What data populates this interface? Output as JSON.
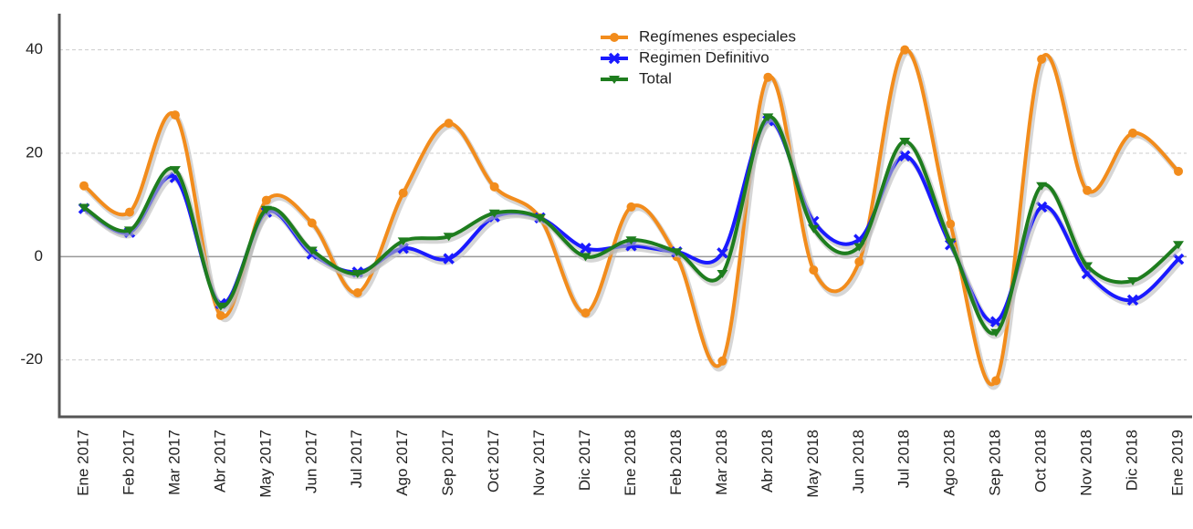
{
  "chart_data": {
    "type": "line",
    "categories": [
      "Ene 2017",
      "Feb 2017",
      "Mar 2017",
      "Abr 2017",
      "May 2017",
      "Jun 2017",
      "Jul 2017",
      "Ago 2017",
      "Sep 2017",
      "Oct 2017",
      "Nov 2017",
      "Dic 2017",
      "Ene 2018",
      "Feb 2018",
      "Mar 2018",
      "Abr 2018",
      "May 2018",
      "Jun 2018",
      "Jul 2018",
      "Ago 2018",
      "Sep 2018",
      "Oct 2018",
      "Nov 2018",
      "Dic 2018",
      "Ene 2019"
    ],
    "series": [
      {
        "name": "Regímenes especiales",
        "color": "#f28c1c",
        "marker": "circle",
        "values": [
          13.7,
          8.6,
          27.4,
          -11.4,
          10.9,
          6.5,
          -7,
          12.3,
          25.8,
          13.5,
          7.5,
          -10.9,
          9.6,
          0,
          -20.2,
          34.7,
          -2.6,
          -1,
          40,
          6.3,
          -24,
          38.2,
          12.8,
          23.9,
          16.5
        ]
      },
      {
        "name": "Regimen Definitivo",
        "color": "#1a1aff",
        "marker": "x",
        "values": [
          9.3,
          4.7,
          15.3,
          -9.1,
          8.6,
          0.5,
          -3,
          1.6,
          -0.4,
          7.7,
          7.5,
          1.6,
          2.1,
          0.9,
          0.7,
          26.3,
          6.8,
          3.3,
          19.5,
          2.3,
          -12.6,
          9.6,
          -3.3,
          -8.4,
          -0.5
        ]
      },
      {
        "name": "Total",
        "color": "#1e7d1e",
        "marker": "triangle-down",
        "values": [
          9.5,
          5.1,
          16.8,
          -9.6,
          9.1,
          1.2,
          -3.3,
          3,
          3.9,
          8.4,
          7.5,
          0,
          3.2,
          0.9,
          -3.3,
          27,
          5.4,
          1.9,
          22.3,
          2.8,
          -14.7,
          13.7,
          -1.8,
          -4.7,
          2.3
        ]
      }
    ],
    "ylim": [
      -31,
      47
    ],
    "yticks": [
      -20,
      0,
      20,
      40
    ],
    "grid": true,
    "legend": "top"
  }
}
